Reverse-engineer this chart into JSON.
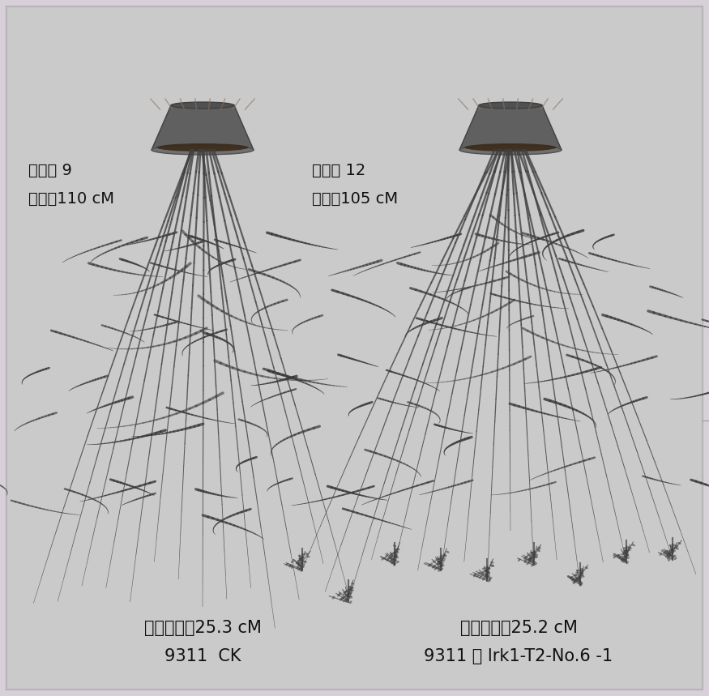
{
  "background_color": "#d8d0d8",
  "fig_width": 8.75,
  "fig_height": 8.59,
  "left_label_line1": "9311  CK",
  "left_label_line2": "平均穗长：25.3 cM",
  "right_label_line1": "9311 转 lrk1-T2-No.6 -1",
  "right_label_line2": "平均穗长：25.2 cM",
  "left_stats_line1": "株高：110 cM",
  "left_stats_line2": "分踘： 9",
  "right_stats_line1": "株高：105 cM",
  "right_stats_line2": "分踘： 12",
  "text_color": "#111111",
  "font_size_title": 15,
  "font_size_stats": 14,
  "bg_gray": 0.85
}
